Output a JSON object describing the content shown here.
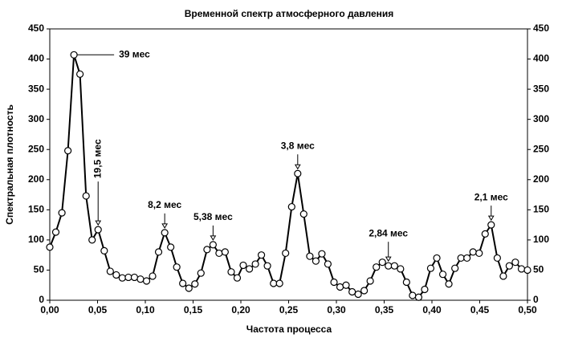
{
  "chart_data": {
    "type": "line",
    "title": "Временной спектр атмосферного давления",
    "x_label": "Частота процесса",
    "y_label": "Спектральная плотность",
    "x": [
      0,
      0.0063,
      0.0127,
      0.019,
      0.0253,
      0.0316,
      0.038,
      0.0443,
      0.0506,
      0.057,
      0.0633,
      0.0696,
      0.0759,
      0.0823,
      0.0886,
      0.0949,
      0.1013,
      0.1076,
      0.1139,
      0.1203,
      0.1266,
      0.1329,
      0.1392,
      0.1456,
      0.1519,
      0.1582,
      0.1646,
      0.1709,
      0.1772,
      0.1835,
      0.1899,
      0.1962,
      0.2025,
      0.2089,
      0.2152,
      0.2215,
      0.2278,
      0.2342,
      0.2405,
      0.2468,
      0.2532,
      0.2595,
      0.2658,
      0.2722,
      0.2785,
      0.2848,
      0.2911,
      0.2975,
      0.3038,
      0.3101,
      0.3165,
      0.3228,
      0.3291,
      0.3354,
      0.3418,
      0.3481,
      0.3544,
      0.3608,
      0.3671,
      0.3734,
      0.3797,
      0.3861,
      0.3924,
      0.3987,
      0.4051,
      0.4114,
      0.4177,
      0.4241,
      0.4304,
      0.4367,
      0.443,
      0.4494,
      0.4557,
      0.462,
      0.4684,
      0.4747,
      0.481,
      0.4873,
      0.4937,
      0.5
    ],
    "series": [
      {
        "color": "#000000",
        "values": [
          88,
          113,
          145,
          248,
          407,
          375,
          173,
          100,
          117,
          82,
          48,
          42,
          37,
          38,
          38,
          35,
          32,
          40,
          80,
          112,
          88,
          55,
          28,
          20,
          27,
          45,
          84,
          92,
          78,
          80,
          47,
          37,
          58,
          52,
          60,
          75,
          57,
          28,
          28,
          78,
          155,
          210,
          143,
          73,
          65,
          77,
          60,
          30,
          22,
          25,
          14,
          10,
          16,
          32,
          55,
          63,
          57,
          57,
          52,
          30,
          8,
          5,
          18,
          53,
          70,
          43,
          27,
          53,
          70,
          70,
          80,
          78,
          110,
          125,
          70,
          40,
          57,
          63,
          52,
          50
        ]
      }
    ],
    "annotations": [
      "39 мес",
      "19,5 мес",
      "8,2 мес",
      "5,38 мес",
      "3,8 мес",
      "2,84 мес",
      "2,1 мес"
    ],
    "xlim": [
      0,
      0.5
    ],
    "xticks": [
      {
        "value": 0,
        "label": "0,00"
      },
      {
        "value": 0.05,
        "label": "0,05"
      },
      {
        "value": 0.1,
        "label": "0,10"
      },
      {
        "value": 0.15,
        "label": "0,15"
      },
      {
        "value": 0.2,
        "label": "0,20"
      },
      {
        "value": 0.25,
        "label": "0,25"
      },
      {
        "value": 0.3,
        "label": "0,30"
      },
      {
        "value": 0.35,
        "label": "0,35"
      },
      {
        "value": 0.4,
        "label": "0,40"
      },
      {
        "value": 0.45,
        "label": "0,45"
      },
      {
        "value": 0.5,
        "label": "0,50"
      }
    ],
    "ylim": [
      0,
      450
    ],
    "yticks": [
      0,
      50,
      100,
      150,
      200,
      250,
      300,
      350,
      400,
      450
    ],
    "grid": false
  }
}
